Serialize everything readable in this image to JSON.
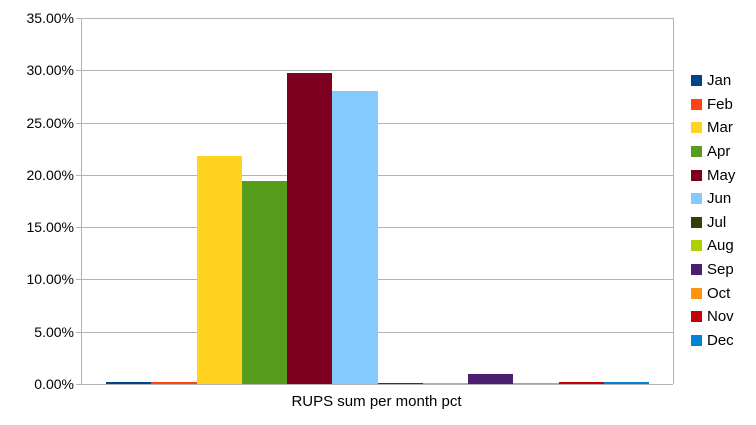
{
  "chart_data": {
    "type": "bar",
    "title": "RUPS sum per month pct",
    "categories": [
      "Jan",
      "Feb",
      "Mar",
      "Apr",
      "May",
      "Jun",
      "Jul",
      "Aug",
      "Sep",
      "Oct",
      "Nov",
      "Dec"
    ],
    "values": [
      0.15,
      0.15,
      21.8,
      19.4,
      29.75,
      28.0,
      0.1,
      0.1,
      1.0,
      0.1,
      0.15,
      0.15
    ],
    "series_colors": [
      "#004586",
      "#FF420E",
      "#FFD320",
      "#579D1C",
      "#7E0021",
      "#83CAFF",
      "#314004",
      "#AECF00",
      "#4B1F6F",
      "#FF950E",
      "#C5000B",
      "#0084D1"
    ],
    "ylim": [
      0,
      35
    ],
    "ytick_step": 5,
    "ytick_labels": [
      "0.00%",
      "5.00%",
      "10.00%",
      "15.00%",
      "20.00%",
      "25.00%",
      "30.00%",
      "35.00%"
    ],
    "grid": "horizontal",
    "legend_position": "right",
    "axis_color": "#b3b3b3",
    "text_color": "#000000",
    "background": "#ffffff"
  }
}
